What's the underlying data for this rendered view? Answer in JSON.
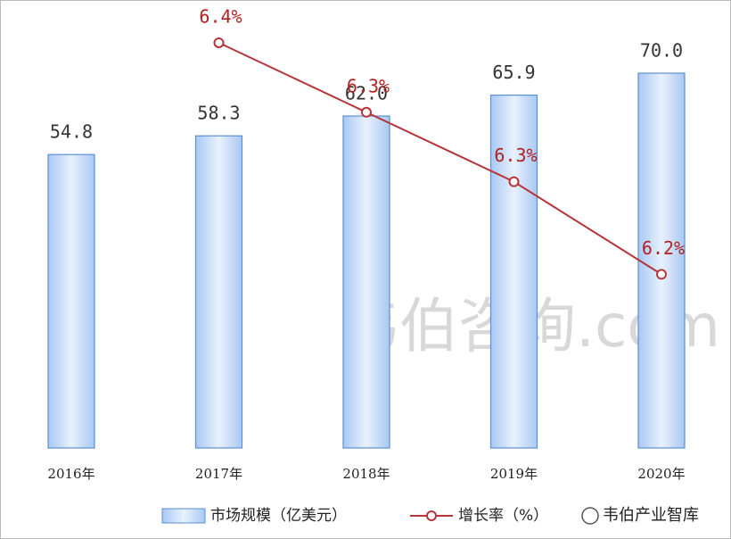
{
  "chart_data": {
    "type": "bar-line",
    "categories": [
      "2016年",
      "2017年",
      "2018年",
      "2019年",
      "2020年"
    ],
    "series": [
      {
        "name": "市场规模（亿美元）",
        "type": "bar",
        "color": "#5b8fd6",
        "values": [
          54.8,
          58.3,
          62.0,
          65.9,
          70.0
        ],
        "value_labels": [
          "54.8",
          "58.3",
          "62.0",
          "65.9",
          "70.0"
        ]
      },
      {
        "name": "增长率（%）",
        "type": "line",
        "axis": "y2",
        "color": "#b5353a",
        "values": [
          null,
          6.4,
          6.34,
          6.28,
          6.2
        ],
        "value_labels": [
          null,
          "6.4%",
          "6.3%",
          "6.3%",
          "6.2%"
        ]
      }
    ],
    "ylim": [
      0,
      80
    ],
    "y2lim": [
      6.05,
      6.42
    ],
    "watermark": "韦伯咨询.com",
    "brand": "韦伯产业智库"
  }
}
